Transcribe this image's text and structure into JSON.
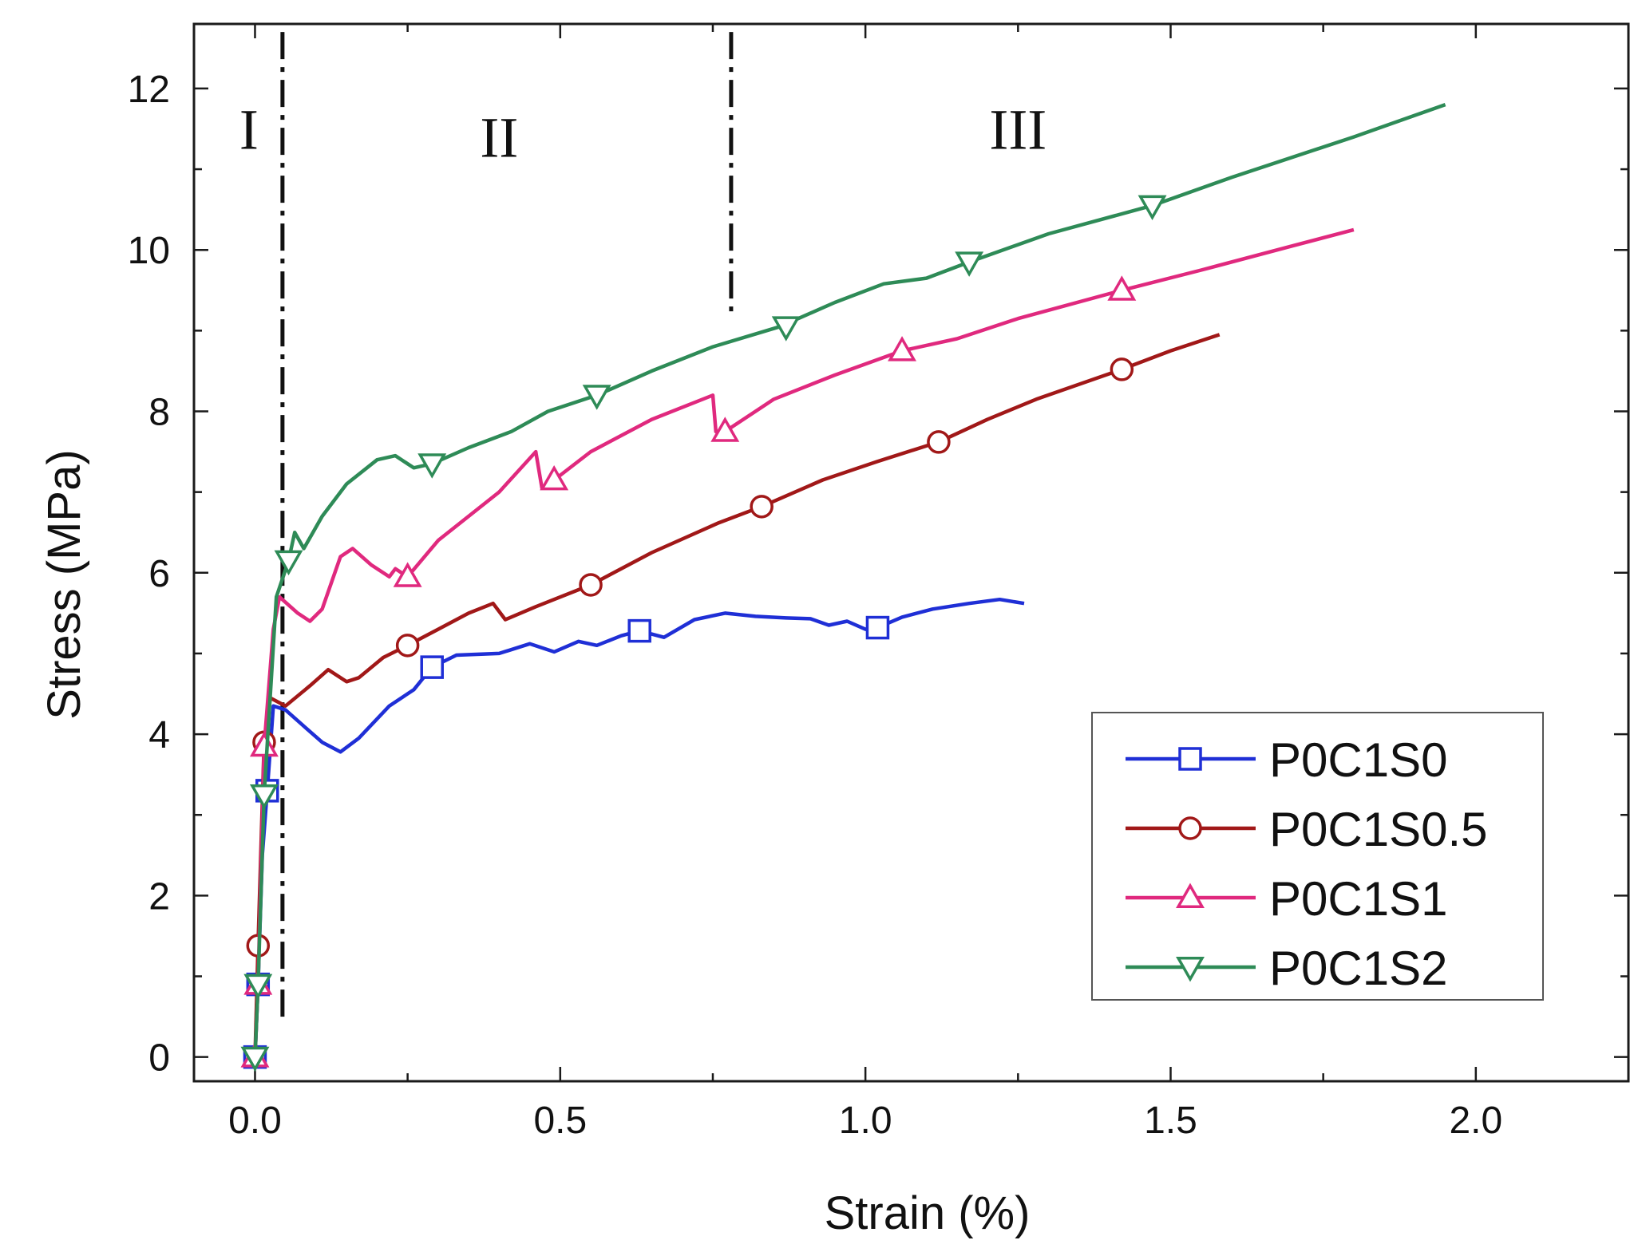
{
  "chart_data": {
    "type": "line",
    "title": "",
    "xlabel": "Strain (%)",
    "ylabel": "Stress (MPa)",
    "xlim": [
      -0.1,
      2.25
    ],
    "ylim": [
      -0.3,
      12.8
    ],
    "xticks": [
      0.0,
      0.5,
      1.0,
      1.5,
      2.0
    ],
    "xtick_labels": [
      "0.0",
      "0.5",
      "1.0",
      "1.5",
      "2.0"
    ],
    "yticks": [
      0,
      2,
      4,
      6,
      8,
      10,
      12
    ],
    "ytick_labels": [
      "0",
      "2",
      "4",
      "6",
      "8",
      "10",
      "12"
    ],
    "regions": [
      {
        "label": "I",
        "x_center": -0.01,
        "y": 11.5
      },
      {
        "label": "II",
        "x_center": 0.4,
        "y": 11.4
      },
      {
        "label": "III",
        "x_center": 1.25,
        "y": 11.5
      }
    ],
    "dividers": [
      {
        "x": 0.045,
        "y_range": [
          0.5,
          12.7
        ]
      },
      {
        "x": 0.78,
        "y_range": [
          9.2,
          12.7
        ]
      }
    ],
    "legend_position": "bottom-right",
    "series": [
      {
        "name": "P0C1S0",
        "color": "#1f2fd6",
        "marker": "square",
        "points": [
          [
            0.0,
            0.0
          ],
          [
            0.005,
            0.9
          ],
          [
            0.012,
            2.5
          ],
          [
            0.02,
            3.3
          ],
          [
            0.03,
            4.35
          ],
          [
            0.05,
            4.3
          ],
          [
            0.08,
            4.1
          ],
          [
            0.11,
            3.9
          ],
          [
            0.14,
            3.78
          ],
          [
            0.17,
            3.95
          ],
          [
            0.22,
            4.35
          ],
          [
            0.26,
            4.55
          ],
          [
            0.29,
            4.83
          ],
          [
            0.33,
            4.98
          ],
          [
            0.4,
            5.0
          ],
          [
            0.45,
            5.12
          ],
          [
            0.49,
            5.02
          ],
          [
            0.53,
            5.15
          ],
          [
            0.56,
            5.1
          ],
          [
            0.6,
            5.22
          ],
          [
            0.63,
            5.28
          ],
          [
            0.67,
            5.2
          ],
          [
            0.72,
            5.42
          ],
          [
            0.77,
            5.5
          ],
          [
            0.82,
            5.46
          ],
          [
            0.87,
            5.44
          ],
          [
            0.91,
            5.43
          ],
          [
            0.94,
            5.35
          ],
          [
            0.97,
            5.4
          ],
          [
            1.0,
            5.3
          ],
          [
            1.02,
            5.32
          ],
          [
            1.06,
            5.45
          ],
          [
            1.11,
            5.55
          ],
          [
            1.17,
            5.62
          ],
          [
            1.22,
            5.67
          ],
          [
            1.26,
            5.62
          ]
        ],
        "markers": [
          [
            0.0,
            0.0
          ],
          [
            0.005,
            0.9
          ],
          [
            0.02,
            3.3
          ],
          [
            0.29,
            4.83
          ],
          [
            0.63,
            5.28
          ],
          [
            1.02,
            5.32
          ]
        ]
      },
      {
        "name": "P0C1S0.5",
        "color": "#a11818",
        "marker": "circle",
        "points": [
          [
            0.0,
            0.0
          ],
          [
            0.005,
            1.38
          ],
          [
            0.015,
            3.9
          ],
          [
            0.025,
            4.45
          ],
          [
            0.05,
            4.35
          ],
          [
            0.09,
            4.6
          ],
          [
            0.12,
            4.8
          ],
          [
            0.15,
            4.65
          ],
          [
            0.17,
            4.7
          ],
          [
            0.21,
            4.95
          ],
          [
            0.25,
            5.1
          ],
          [
            0.3,
            5.3
          ],
          [
            0.35,
            5.5
          ],
          [
            0.39,
            5.62
          ],
          [
            0.41,
            5.42
          ],
          [
            0.46,
            5.58
          ],
          [
            0.55,
            5.85
          ],
          [
            0.65,
            6.25
          ],
          [
            0.76,
            6.62
          ],
          [
            0.83,
            6.82
          ],
          [
            0.93,
            7.15
          ],
          [
            1.02,
            7.38
          ],
          [
            1.12,
            7.62
          ],
          [
            1.2,
            7.9
          ],
          [
            1.28,
            8.15
          ],
          [
            1.42,
            8.52
          ],
          [
            1.5,
            8.75
          ],
          [
            1.58,
            8.95
          ]
        ],
        "markers": [
          [
            0.005,
            1.38
          ],
          [
            0.015,
            3.9
          ],
          [
            0.25,
            5.1
          ],
          [
            0.55,
            5.85
          ],
          [
            0.83,
            6.82
          ],
          [
            1.12,
            7.62
          ],
          [
            1.42,
            8.52
          ]
        ]
      },
      {
        "name": "P0C1S1",
        "color": "#e0297e",
        "marker": "triangle-up",
        "points": [
          [
            0.0,
            0.0
          ],
          [
            0.005,
            0.9
          ],
          [
            0.015,
            3.85
          ],
          [
            0.03,
            5.3
          ],
          [
            0.04,
            5.7
          ],
          [
            0.07,
            5.5
          ],
          [
            0.09,
            5.4
          ],
          [
            0.11,
            5.55
          ],
          [
            0.14,
            6.2
          ],
          [
            0.16,
            6.3
          ],
          [
            0.19,
            6.1
          ],
          [
            0.22,
            5.95
          ],
          [
            0.23,
            6.05
          ],
          [
            0.25,
            5.95
          ],
          [
            0.3,
            6.4
          ],
          [
            0.4,
            7.0
          ],
          [
            0.46,
            7.5
          ],
          [
            0.47,
            7.05
          ],
          [
            0.49,
            7.15
          ],
          [
            0.55,
            7.5
          ],
          [
            0.65,
            7.9
          ],
          [
            0.75,
            8.2
          ],
          [
            0.755,
            7.75
          ],
          [
            0.77,
            7.75
          ],
          [
            0.85,
            8.15
          ],
          [
            0.95,
            8.45
          ],
          [
            1.06,
            8.75
          ],
          [
            1.15,
            8.9
          ],
          [
            1.25,
            9.15
          ],
          [
            1.42,
            9.5
          ],
          [
            1.55,
            9.75
          ],
          [
            1.7,
            10.05
          ],
          [
            1.8,
            10.25
          ]
        ],
        "markers": [
          [
            0.0,
            0.0
          ],
          [
            0.005,
            0.9
          ],
          [
            0.015,
            3.85
          ],
          [
            0.25,
            5.95
          ],
          [
            0.49,
            7.15
          ],
          [
            0.77,
            7.75
          ],
          [
            1.06,
            8.75
          ],
          [
            1.42,
            9.5
          ]
        ]
      },
      {
        "name": "P0C1S2",
        "color": "#2e8b57",
        "marker": "triangle-down",
        "points": [
          [
            0.0,
            0.0
          ],
          [
            0.005,
            0.9
          ],
          [
            0.015,
            3.25
          ],
          [
            0.035,
            5.7
          ],
          [
            0.055,
            6.15
          ],
          [
            0.065,
            6.5
          ],
          [
            0.08,
            6.3
          ],
          [
            0.11,
            6.7
          ],
          [
            0.15,
            7.1
          ],
          [
            0.2,
            7.4
          ],
          [
            0.23,
            7.45
          ],
          [
            0.26,
            7.3
          ],
          [
            0.29,
            7.35
          ],
          [
            0.35,
            7.55
          ],
          [
            0.42,
            7.75
          ],
          [
            0.48,
            8.0
          ],
          [
            0.56,
            8.2
          ],
          [
            0.65,
            8.5
          ],
          [
            0.75,
            8.8
          ],
          [
            0.86,
            9.05
          ],
          [
            0.95,
            9.35
          ],
          [
            1.03,
            9.58
          ],
          [
            1.1,
            9.65
          ],
          [
            1.17,
            9.85
          ],
          [
            1.3,
            10.2
          ],
          [
            1.47,
            10.55
          ],
          [
            1.6,
            10.9
          ],
          [
            1.8,
            11.4
          ],
          [
            1.95,
            11.8
          ]
        ],
        "markers": [
          [
            0.0,
            0.0
          ],
          [
            0.005,
            0.9
          ],
          [
            0.015,
            3.25
          ],
          [
            0.055,
            6.15
          ],
          [
            0.29,
            7.35
          ],
          [
            0.56,
            8.2
          ],
          [
            0.87,
            9.05
          ],
          [
            1.17,
            9.85
          ],
          [
            1.47,
            10.55
          ]
        ]
      }
    ]
  }
}
